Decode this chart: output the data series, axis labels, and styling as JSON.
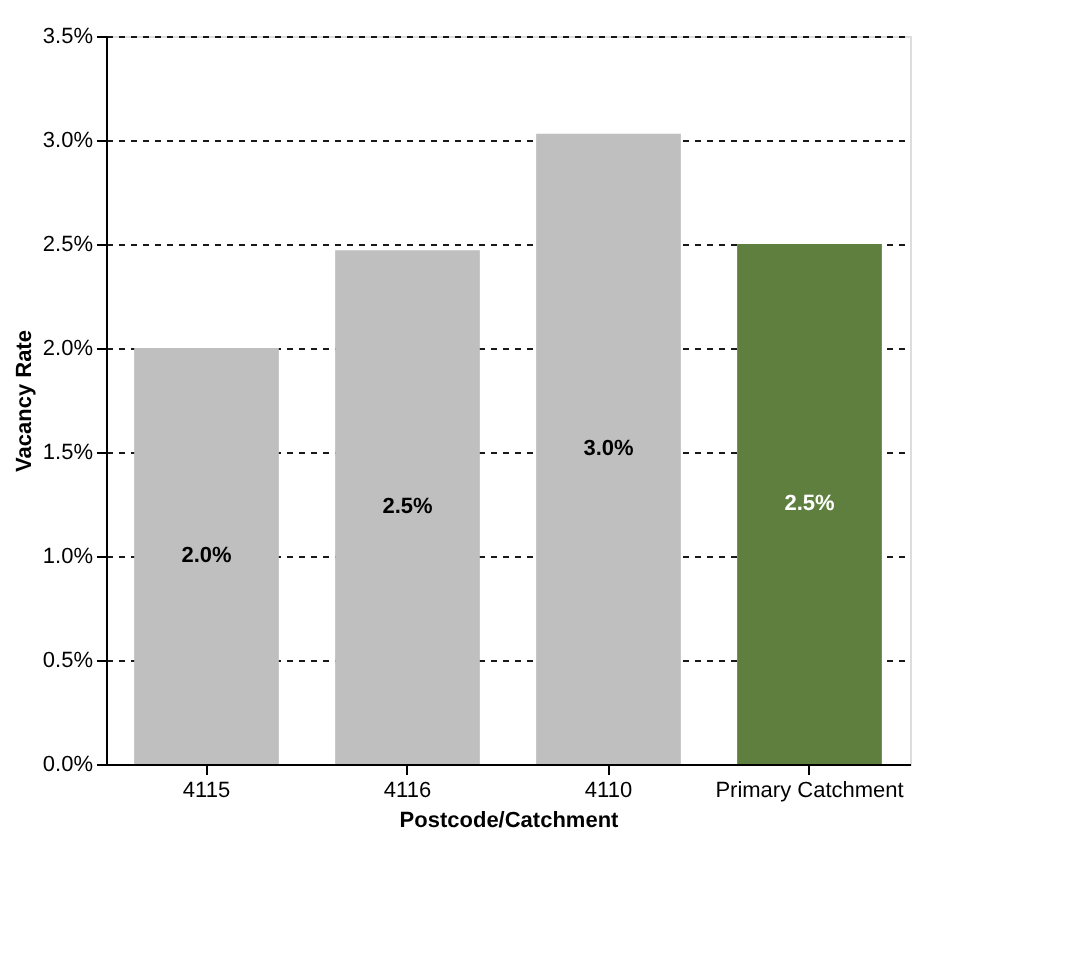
{
  "chart_data": {
    "type": "bar",
    "xlabel": "Postcode/Catchment",
    "ylabel": "Vacancy Rate",
    "categories": [
      "4115",
      "4116",
      "4110",
      "Primary Catchment"
    ],
    "values": [
      2.0,
      2.47,
      3.03,
      2.5
    ],
    "colors": [
      "#bfbfbf",
      "#bfbfbf",
      "#bfbfbf",
      "#5f7f3f"
    ],
    "value_labels": [
      "2.0%",
      "2.5%",
      "3.0%",
      "2.5%"
    ],
    "ylim": [
      0,
      3.5
    ],
    "yticks": [
      {
        "value": 0,
        "label": "0.0%"
      },
      {
        "value": 0.5,
        "label": "0.5%"
      },
      {
        "value": 1,
        "label": "1.0%"
      },
      {
        "value": 1.5,
        "label": "1.5%"
      },
      {
        "value": 2,
        "label": "2.0%"
      },
      {
        "value": 2.5,
        "label": "2.5%"
      },
      {
        "value": 3,
        "label": "3.0%"
      },
      {
        "value": 3.5,
        "label": "3.5%"
      }
    ],
    "grid": "y"
  }
}
